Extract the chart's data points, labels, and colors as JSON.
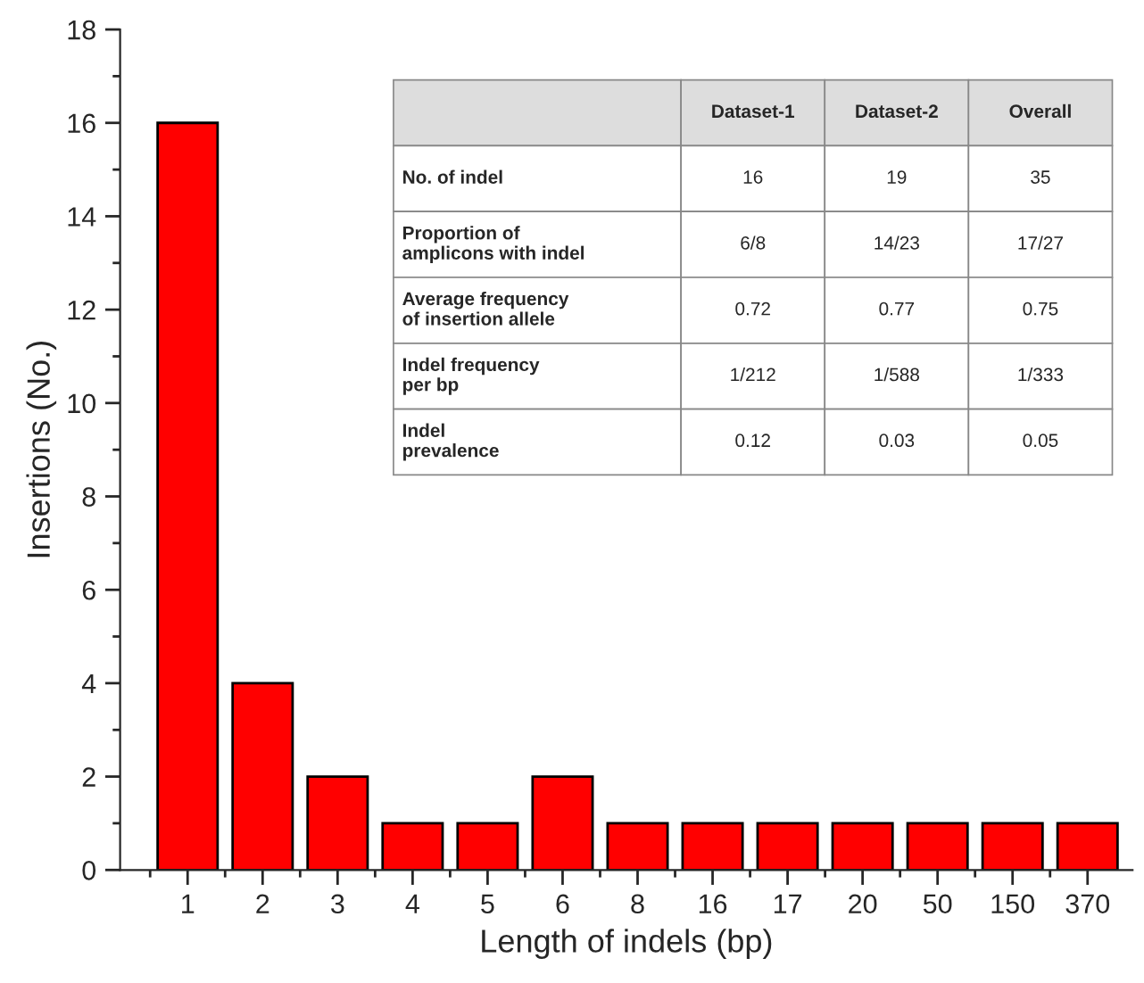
{
  "chart_data": {
    "type": "bar",
    "xlabel": "Length of indels (bp)",
    "ylabel": "Insertions (No.)",
    "categories": [
      "1",
      "2",
      "3",
      "4",
      "5",
      "6",
      "8",
      "16",
      "17",
      "20",
      "50",
      "150",
      "370"
    ],
    "values": [
      16,
      4,
      2,
      1,
      1,
      2,
      1,
      1,
      1,
      1,
      1,
      1,
      1
    ],
    "color": "#ff0000",
    "ylim": [
      0,
      18
    ],
    "yticks": [
      0,
      2,
      4,
      6,
      8,
      10,
      12,
      14,
      16,
      18
    ],
    "grid": false,
    "annotations": [
      "Dataset-1",
      "Dataset-2",
      "Overall",
      "No. of indel",
      "16",
      "19",
      "35",
      "Proportion of\namplicons with indel",
      "6/8",
      "14/23",
      "17/27",
      "Average frequency\nof insertion allele",
      "0.72",
      "0.77",
      "0.75",
      "Indel frequency\nper bp",
      "1/212",
      "1/588",
      "1/333",
      "Indel\nprevalence",
      "0.12",
      "0.03",
      "0.05"
    ]
  }
}
